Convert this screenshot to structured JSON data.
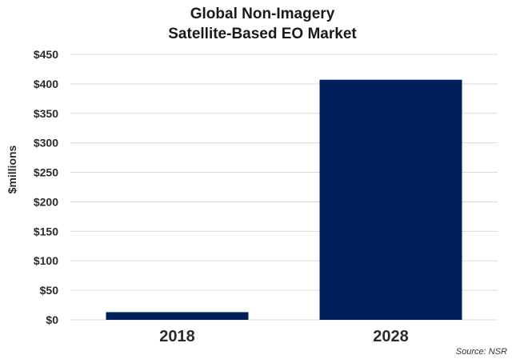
{
  "chart_data": {
    "type": "bar",
    "title": [
      "Global Non-Imagery",
      "Satellite-Based EO Market"
    ],
    "ylabel": "$millions",
    "xlabel": "",
    "categories": [
      "2018",
      "2028"
    ],
    "values": [
      13,
      407
    ],
    "ylim": [
      0,
      450
    ],
    "yticks": [
      0,
      50,
      100,
      150,
      200,
      250,
      300,
      350,
      400,
      450
    ],
    "ytick_labels": [
      "$0",
      "$50",
      "$100",
      "$150",
      "$200",
      "$250",
      "$300",
      "$350",
      "$400",
      "$450"
    ],
    "grid": true,
    "legend": "none",
    "bar_color": "#00205b",
    "source": "Source: NSR"
  }
}
